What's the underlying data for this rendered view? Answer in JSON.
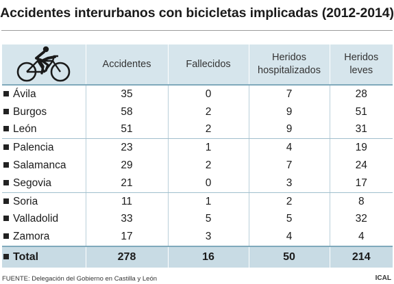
{
  "title": "Accidentes interurbanos con bicicletas implicadas (2012-2014)",
  "icon": "cyclist-icon",
  "footer": "FUENTE: Delegación del Gobierno en Castilla y León",
  "credit": "ICAL",
  "colors": {
    "header_bg": "#d6e5ec",
    "total_bg": "#c8dbe4",
    "rule": "#7fa9bb"
  },
  "chart_data": {
    "type": "table",
    "columns": [
      "Accidentes",
      "Fallecidos",
      "Heridos hospitalizados",
      "Heridos leves"
    ],
    "column_lines": [
      [
        "Accidentes"
      ],
      [
        "Fallecidos"
      ],
      [
        "Heridos",
        "hospitalizados"
      ],
      [
        "Heridos",
        "leves"
      ]
    ],
    "rows": [
      {
        "name": "Ávila",
        "values": [
          "35",
          "0",
          "7",
          "28"
        ]
      },
      {
        "name": "Burgos",
        "values": [
          "58",
          "2",
          "9",
          "51"
        ]
      },
      {
        "name": "León",
        "values": [
          "51",
          "2",
          "9",
          "31"
        ]
      },
      {
        "name": "Palencia",
        "values": [
          "23",
          "1",
          "4",
          "19"
        ]
      },
      {
        "name": "Salamanca",
        "values": [
          "29",
          "2",
          "7",
          "24"
        ]
      },
      {
        "name": "Segovia",
        "values": [
          "21",
          "0",
          "3",
          "17"
        ]
      },
      {
        "name": "Soria",
        "values": [
          "11",
          "1",
          "2",
          "8"
        ]
      },
      {
        "name": "Valladolid",
        "values": [
          "33",
          "5",
          "5",
          "32"
        ]
      },
      {
        "name": "Zamora",
        "values": [
          "17",
          "3",
          "4",
          "4"
        ]
      }
    ],
    "total": {
      "name": "Total",
      "values": [
        "278",
        "16",
        "50",
        "214"
      ]
    }
  }
}
